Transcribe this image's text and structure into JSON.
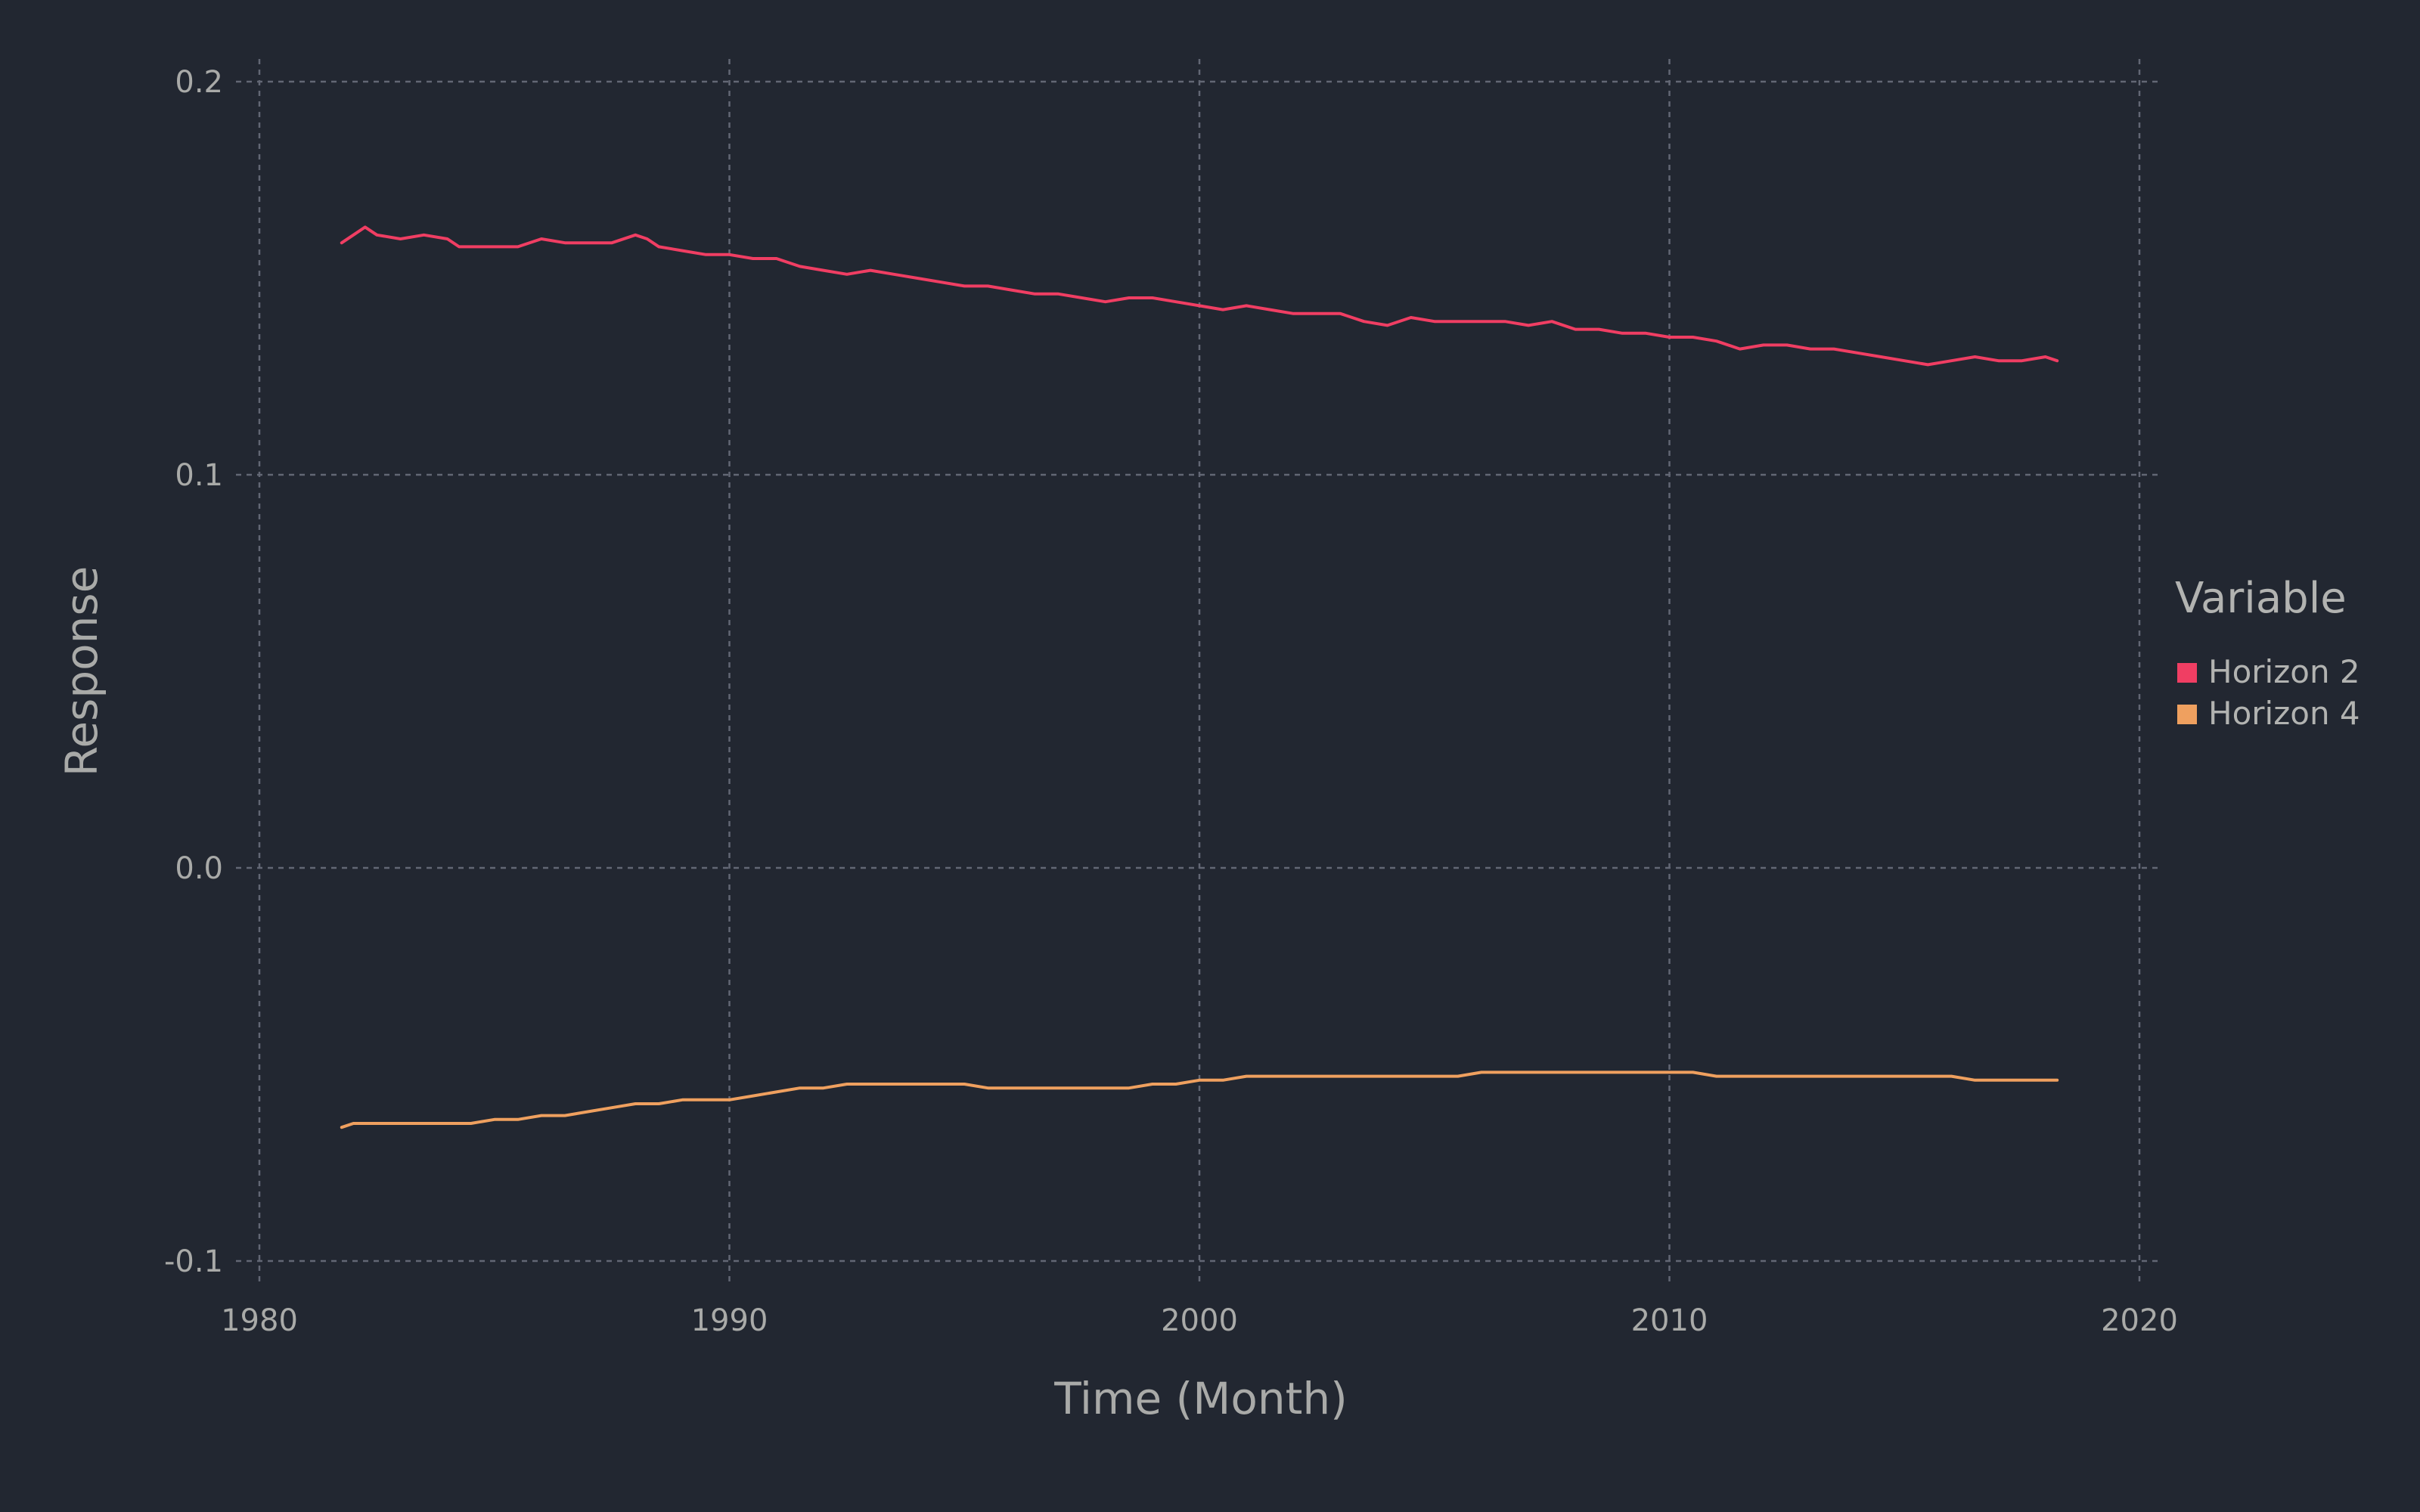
{
  "chart_data": {
    "type": "line",
    "xlabel": "Time (Month)",
    "ylabel": "Response",
    "xlim": [
      1980,
      2020
    ],
    "ylim": [
      -0.1,
      0.2
    ],
    "xticks": [
      1980,
      1990,
      2000,
      2010,
      2020
    ],
    "yticks": [
      -0.1,
      0.0,
      0.1,
      0.2
    ],
    "xtick_labels": [
      "1980",
      "1990",
      "2000",
      "2010",
      "2020"
    ],
    "ytick_labels": [
      "-0.1",
      "0.0",
      "0.1",
      "0.2"
    ],
    "grid": true,
    "legend": {
      "title": "Variable",
      "position": "right"
    },
    "series": [
      {
        "name": "Horizon 2",
        "color": "#f03e63",
        "x": [
          1981.75,
          1982.0,
          1982.25,
          1982.5,
          1983.0,
          1983.5,
          1984.0,
          1984.25,
          1984.5,
          1985.0,
          1985.5,
          1986.0,
          1986.5,
          1987.0,
          1987.5,
          1988.0,
          1988.25,
          1988.5,
          1989.0,
          1989.5,
          1990.0,
          1990.5,
          1991.0,
          1991.5,
          1992.0,
          1992.5,
          1993.0,
          1993.5,
          1994.0,
          1994.5,
          1995.0,
          1995.5,
          1996.0,
          1996.5,
          1997.0,
          1997.5,
          1998.0,
          1998.5,
          1999.0,
          1999.5,
          2000.0,
          2000.5,
          2001.0,
          2001.5,
          2002.0,
          2002.5,
          2003.0,
          2003.5,
          2004.0,
          2004.5,
          2005.0,
          2005.5,
          2006.0,
          2006.5,
          2007.0,
          2007.5,
          2008.0,
          2008.5,
          2009.0,
          2009.5,
          2010.0,
          2010.5,
          2011.0,
          2011.5,
          2012.0,
          2012.5,
          2013.0,
          2013.5,
          2014.0,
          2014.5,
          2015.0,
          2015.5,
          2016.0,
          2016.5,
          2017.0,
          2017.5,
          2018.0,
          2018.25
        ],
        "values": [
          0.159,
          0.161,
          0.163,
          0.161,
          0.16,
          0.161,
          0.16,
          0.158,
          0.158,
          0.158,
          0.158,
          0.16,
          0.159,
          0.159,
          0.159,
          0.161,
          0.16,
          0.158,
          0.157,
          0.156,
          0.156,
          0.155,
          0.155,
          0.153,
          0.152,
          0.151,
          0.152,
          0.151,
          0.15,
          0.149,
          0.148,
          0.148,
          0.147,
          0.146,
          0.146,
          0.145,
          0.144,
          0.145,
          0.145,
          0.144,
          0.143,
          0.142,
          0.143,
          0.142,
          0.141,
          0.141,
          0.141,
          0.139,
          0.138,
          0.14,
          0.139,
          0.139,
          0.139,
          0.139,
          0.138,
          0.139,
          0.137,
          0.137,
          0.136,
          0.136,
          0.135,
          0.135,
          0.134,
          0.132,
          0.133,
          0.133,
          0.132,
          0.132,
          0.131,
          0.13,
          0.129,
          0.128,
          0.129,
          0.13,
          0.129,
          0.129,
          0.13,
          0.129
        ]
      },
      {
        "name": "Horizon 4",
        "color": "#efa05f",
        "x": [
          1981.75,
          1982.0,
          1982.5,
          1983.0,
          1983.5,
          1984.0,
          1984.5,
          1985.0,
          1985.5,
          1986.0,
          1986.5,
          1987.0,
          1987.5,
          1988.0,
          1988.5,
          1989.0,
          1989.5,
          1990.0,
          1990.5,
          1991.0,
          1991.5,
          1992.0,
          1992.5,
          1993.0,
          1993.5,
          1994.0,
          1994.5,
          1995.0,
          1995.5,
          1996.0,
          1996.5,
          1997.0,
          1997.5,
          1998.0,
          1998.5,
          1999.0,
          1999.5,
          2000.0,
          2000.5,
          2001.0,
          2001.5,
          2002.0,
          2002.5,
          2003.0,
          2003.5,
          2004.0,
          2004.5,
          2005.0,
          2005.5,
          2006.0,
          2006.5,
          2007.0,
          2007.5,
          2008.0,
          2008.5,
          2009.0,
          2009.5,
          2010.0,
          2010.5,
          2011.0,
          2011.5,
          2012.0,
          2012.5,
          2013.0,
          2013.5,
          2014.0,
          2014.5,
          2015.0,
          2015.5,
          2016.0,
          2016.5,
          2017.0,
          2017.5,
          2018.0,
          2018.25
        ],
        "values": [
          -0.066,
          -0.065,
          -0.065,
          -0.065,
          -0.065,
          -0.065,
          -0.065,
          -0.064,
          -0.064,
          -0.063,
          -0.063,
          -0.062,
          -0.061,
          -0.06,
          -0.06,
          -0.059,
          -0.059,
          -0.059,
          -0.058,
          -0.057,
          -0.056,
          -0.056,
          -0.055,
          -0.055,
          -0.055,
          -0.055,
          -0.055,
          -0.055,
          -0.056,
          -0.056,
          -0.056,
          -0.056,
          -0.056,
          -0.056,
          -0.056,
          -0.055,
          -0.055,
          -0.054,
          -0.054,
          -0.053,
          -0.053,
          -0.053,
          -0.053,
          -0.053,
          -0.053,
          -0.053,
          -0.053,
          -0.053,
          -0.053,
          -0.052,
          -0.052,
          -0.052,
          -0.052,
          -0.052,
          -0.052,
          -0.052,
          -0.052,
          -0.052,
          -0.052,
          -0.053,
          -0.053,
          -0.053,
          -0.053,
          -0.053,
          -0.053,
          -0.053,
          -0.053,
          -0.053,
          -0.053,
          -0.053,
          -0.054,
          -0.054,
          -0.054,
          -0.054,
          -0.054
        ]
      }
    ]
  }
}
